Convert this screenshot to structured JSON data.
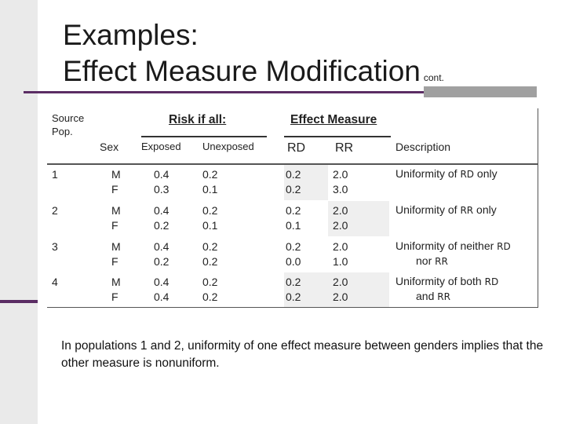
{
  "slide": {
    "title_line1": "Examples:",
    "title_line2": "Effect Measure Modification",
    "title_suffix": "cont."
  },
  "table": {
    "source_pop_label": "Source Pop.",
    "risk_header": "Risk if all:",
    "effect_header": "Effect Measure",
    "col_sex": "Sex",
    "col_exposed": "Exposed",
    "col_unexposed": "Unexposed",
    "col_rd": "RD",
    "col_rr": "RR",
    "col_description": "Description",
    "rows": [
      {
        "pop": "1",
        "sex1": "M",
        "sex2": "F",
        "exp1": "0.4",
        "exp2": "0.3",
        "unexp1": "0.2",
        "unexp2": "0.1",
        "rd1": "0.2",
        "rd2": "0.2",
        "rr1": "2.0",
        "rr2": "3.0",
        "desc_a": "Uniformity of ",
        "desc_b": "RD",
        "desc_c": " only",
        "desc_line2": ""
      },
      {
        "pop": "2",
        "sex1": "M",
        "sex2": "F",
        "exp1": "0.4",
        "exp2": "0.2",
        "unexp1": "0.2",
        "unexp2": "0.1",
        "rd1": "0.2",
        "rd2": "0.1",
        "rr1": "2.0",
        "rr2": "2.0",
        "desc_a": "Uniformity of ",
        "desc_b": "RR",
        "desc_c": " only",
        "desc_line2": ""
      },
      {
        "pop": "3",
        "sex1": "M",
        "sex2": "F",
        "exp1": "0.4",
        "exp2": "0.2",
        "unexp1": "0.2",
        "unexp2": "0.2",
        "rd1": "0.2",
        "rd2": "0.0",
        "rr1": "2.0",
        "rr2": "1.0",
        "desc_a": "Uniformity of neither ",
        "desc_b": "RD",
        "desc_c": "",
        "desc_line2a": "nor ",
        "desc_line2b": "RR"
      },
      {
        "pop": "4",
        "sex1": "M",
        "sex2": "F",
        "exp1": "0.4",
        "exp2": "0.4",
        "unexp1": "0.2",
        "unexp2": "0.2",
        "rd1": "0.2",
        "rd2": "0.2",
        "rr1": "2.0",
        "rr2": "2.0",
        "desc_a": "Uniformity of both ",
        "desc_b": "RD",
        "desc_c": "",
        "desc_line2a": "and ",
        "desc_line2b": "RR"
      }
    ]
  },
  "footer_text": "In populations 1 and 2, uniformity of one effect measure between genders implies that the other measure is nonuniform."
}
